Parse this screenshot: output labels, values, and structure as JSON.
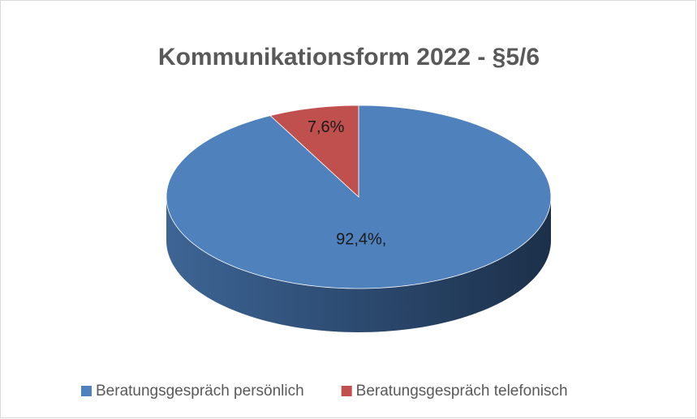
{
  "chart_data": {
    "type": "pie",
    "title": "Kommunikationsform 2022 - §5/6",
    "categories": [
      "Beratungsgespräch persönlich",
      "Beratungsgespräch telefonisch"
    ],
    "values": [
      92.4,
      7.6
    ],
    "value_labels": [
      "92,4%,",
      "7,6%"
    ],
    "colors": [
      "#4f81bd",
      "#c0504d"
    ],
    "legend": "bottom"
  }
}
